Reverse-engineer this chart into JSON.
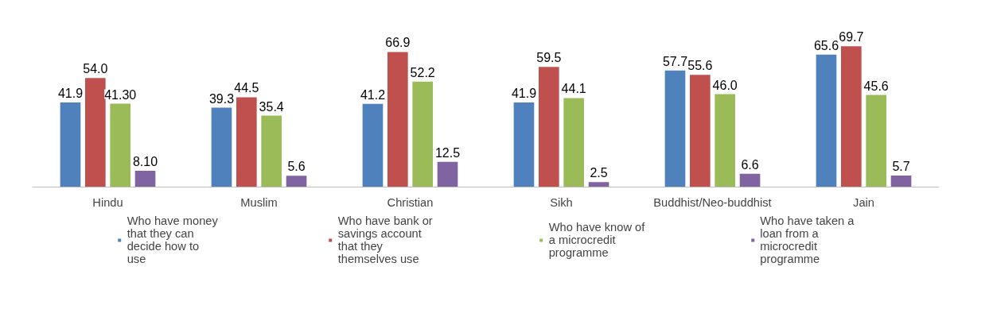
{
  "chart_data": {
    "type": "bar",
    "categories": [
      "Hindu",
      "Muslim",
      "Christian",
      "Sikh",
      "Buddhist/Neo-buddhist",
      "Jain"
    ],
    "series": [
      {
        "name": "Who have money that they can decide how to use",
        "color": "#4f81bd",
        "values": [
          41.9,
          39.3,
          41.2,
          41.9,
          57.7,
          65.6
        ],
        "value_labels": [
          "41.9",
          "39.3",
          "41.2",
          "41.9",
          "57.7",
          "65.6"
        ]
      },
      {
        "name": "Who have bank or savings account that they themselves use",
        "color": "#c0504d",
        "values": [
          54.0,
          44.5,
          66.9,
          59.5,
          55.6,
          69.7
        ],
        "value_labels": [
          "54.0",
          "44.5",
          "66.9",
          "59.5",
          "55.6",
          "69.7"
        ]
      },
      {
        "name": "Who have know of a microcredit programme",
        "color": "#9bbb59",
        "values": [
          41.3,
          35.4,
          52.2,
          44.1,
          46.0,
          45.6
        ],
        "value_labels": [
          "41.30",
          "35.4",
          "52.2",
          "44.1",
          "46.0",
          "45.6"
        ]
      },
      {
        "name": "Who have taken a loan from a microcredit programme",
        "color": "#8064a2",
        "values": [
          8.1,
          5.6,
          12.5,
          2.5,
          6.6,
          5.7
        ],
        "value_labels": [
          "8.10",
          "5.6",
          "12.5",
          "2.5",
          "6.6",
          "5.7"
        ]
      }
    ],
    "legend": "bottom"
  }
}
